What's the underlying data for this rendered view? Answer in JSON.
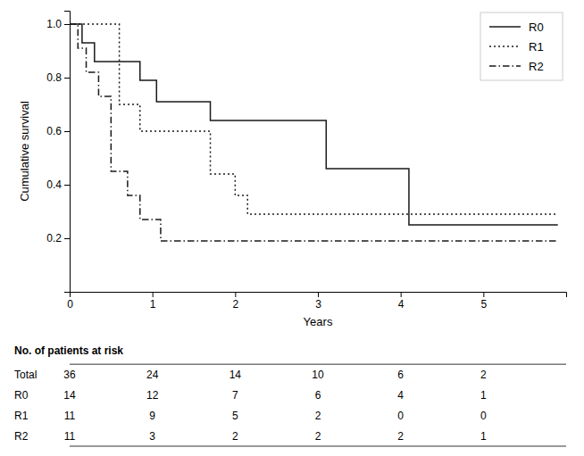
{
  "chart_data": {
    "type": "step",
    "xlabel": "Years",
    "ylabel": "Cumulative survival",
    "xlim": [
      0,
      6.0
    ],
    "ylim": [
      0.0,
      1.05
    ],
    "xticks": [
      0,
      1,
      2,
      3,
      4,
      5
    ],
    "yticks": [
      0.2,
      0.4,
      0.6,
      0.8,
      {
        "value": 1.0,
        "label": "1.0"
      }
    ],
    "grid": false,
    "legend": "upper right",
    "series": [
      {
        "name": "R0",
        "color": "#1a1a1a",
        "line_style": "solid",
        "x": [
          0,
          0.15,
          0.15,
          0.3,
          0.3,
          0.85,
          0.85,
          1.05,
          1.05,
          1.7,
          1.7,
          3.1,
          3.1,
          4.1,
          4.1,
          5.0,
          5.0,
          5.9
        ],
        "values": [
          1.0,
          1.0,
          0.93,
          0.93,
          0.86,
          0.86,
          0.79,
          0.79,
          0.71,
          0.71,
          0.64,
          0.64,
          0.46,
          0.46,
          0.25,
          0.25,
          0.25,
          0.25
        ]
      },
      {
        "name": "R1",
        "color": "#1a1a1a",
        "line_style": "dotted",
        "x": [
          0,
          0.0,
          0.0,
          0.6,
          0.6,
          0.85,
          0.85,
          1.7,
          1.7,
          2.0,
          2.0,
          2.15,
          2.15,
          2.6,
          2.6,
          5.9
        ],
        "values": [
          1.0,
          1.0,
          1.0,
          1.0,
          0.7,
          0.7,
          0.6,
          0.6,
          0.44,
          0.44,
          0.36,
          0.36,
          0.29,
          0.29,
          0.29,
          0.29
        ]
      },
      {
        "name": "R2",
        "color": "#1a1a1a",
        "line_style": "dashdot",
        "x": [
          0,
          0.1,
          0.1,
          0.2,
          0.2,
          0.35,
          0.35,
          0.5,
          0.5,
          0.7,
          0.7,
          0.85,
          0.85,
          1.1,
          1.1,
          5.9
        ],
        "values": [
          1.0,
          1.0,
          0.91,
          0.91,
          0.82,
          0.82,
          0.73,
          0.73,
          0.45,
          0.45,
          0.36,
          0.36,
          0.27,
          0.27,
          0.19,
          0.19
        ]
      }
    ],
    "table": {
      "header": "No. of patients at risk",
      "x": [
        0,
        1,
        2,
        3,
        4,
        5
      ],
      "rows": [
        {
          "label": "Total",
          "values": [
            36,
            24,
            14,
            10,
            6,
            2
          ]
        },
        {
          "label": "R0",
          "values": [
            14,
            12,
            7,
            6,
            4,
            1
          ]
        },
        {
          "label": "R1",
          "values": [
            11,
            9,
            5,
            2,
            0,
            0
          ]
        },
        {
          "label": "R2",
          "values": [
            11,
            3,
            2,
            2,
            2,
            1
          ]
        }
      ]
    }
  }
}
